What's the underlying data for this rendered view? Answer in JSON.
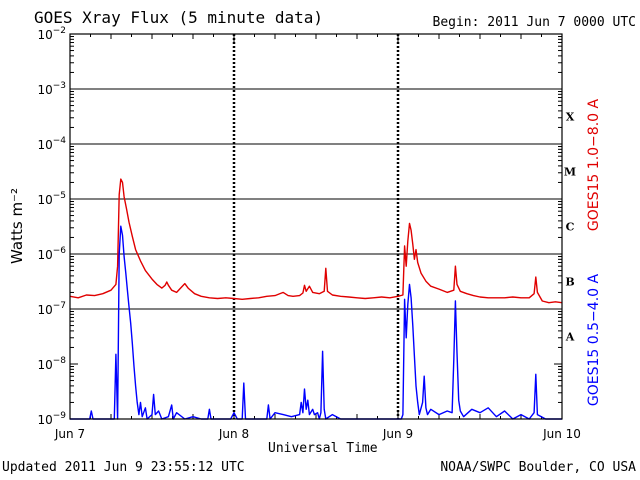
{
  "header": {
    "title": "GOES Xray Flux (5 minute data)",
    "begin": "Begin:  2011 Jun 7 0000 UTC"
  },
  "footer": {
    "updated": "Updated 2011 Jun  9 23:55:12 UTC",
    "source": "NOAA/SWPC Boulder, CO USA"
  },
  "colors": {
    "long_channel": "#e00000",
    "short_channel": "#0000ff",
    "axes": "#000000",
    "background": "#ffffff"
  },
  "chart_data": {
    "type": "line",
    "xlabel": "Universal Time",
    "ylabel": "Watts m⁻²",
    "yscale": "log",
    "ylim": [
      1e-09,
      0.01
    ],
    "xlim": [
      0,
      3
    ],
    "x_unit": "days since 2011 Jun 7 0000 UTC",
    "x_ticks": [
      {
        "value": 0,
        "label": "Jun 7"
      },
      {
        "value": 1,
        "label": "Jun 8"
      },
      {
        "value": 2,
        "label": "Jun 9"
      },
      {
        "value": 3,
        "label": "Jun 10"
      }
    ],
    "y_ticks": [
      {
        "value": 1e-09,
        "base": "10",
        "exp": "−9"
      },
      {
        "value": 1e-08,
        "base": "10",
        "exp": "−8"
      },
      {
        "value": 1e-07,
        "base": "10",
        "exp": "−7"
      },
      {
        "value": 1e-06,
        "base": "10",
        "exp": "−6"
      },
      {
        "value": 1e-05,
        "base": "10",
        "exp": "−5"
      },
      {
        "value": 0.0001,
        "base": "10",
        "exp": "−4"
      },
      {
        "value": 0.001,
        "base": "10",
        "exp": "−3"
      },
      {
        "value": 0.01,
        "base": "10",
        "exp": "−2"
      }
    ],
    "flare_classes": [
      {
        "label": "A",
        "value": 3.16e-08
      },
      {
        "label": "B",
        "value": 3.16e-07
      },
      {
        "label": "C",
        "value": 3.16e-06
      },
      {
        "label": "M",
        "value": 3.16e-05
      },
      {
        "label": "X",
        "value": 0.000316
      }
    ],
    "grid": {
      "horizontal_lines_at": [
        1e-07,
        1e-06,
        1e-05,
        0.0001,
        0.001
      ],
      "vertical_dashed_at": [
        1,
        2
      ]
    },
    "series": [
      {
        "name": "GOES15 1.0−8.0 A",
        "color": "#e00000",
        "points": [
          [
            0.0,
            1.7e-07
          ],
          [
            0.05,
            1.6e-07
          ],
          [
            0.1,
            1.8e-07
          ],
          [
            0.15,
            1.75e-07
          ],
          [
            0.2,
            1.9e-07
          ],
          [
            0.25,
            2.2e-07
          ],
          [
            0.28,
            2.8e-07
          ],
          [
            0.29,
            6e-07
          ],
          [
            0.3,
            1.2e-05
          ],
          [
            0.31,
            2.3e-05
          ],
          [
            0.32,
            2e-05
          ],
          [
            0.33,
            1.1e-05
          ],
          [
            0.345,
            6.5e-06
          ],
          [
            0.36,
            3.8e-06
          ],
          [
            0.38,
            2.1e-06
          ],
          [
            0.4,
            1.2e-06
          ],
          [
            0.43,
            7.5e-07
          ],
          [
            0.46,
            5e-07
          ],
          [
            0.5,
            3.5e-07
          ],
          [
            0.53,
            2.8e-07
          ],
          [
            0.56,
            2.4e-07
          ],
          [
            0.58,
            2.7e-07
          ],
          [
            0.59,
            3.1e-07
          ],
          [
            0.6,
            2.7e-07
          ],
          [
            0.62,
            2.2e-07
          ],
          [
            0.65,
            2e-07
          ],
          [
            0.68,
            2.5e-07
          ],
          [
            0.7,
            2.9e-07
          ],
          [
            0.72,
            2.4e-07
          ],
          [
            0.76,
            1.9e-07
          ],
          [
            0.8,
            1.7e-07
          ],
          [
            0.85,
            1.6e-07
          ],
          [
            0.9,
            1.55e-07
          ],
          [
            0.95,
            1.6e-07
          ],
          [
            1.0,
            1.55e-07
          ],
          [
            1.05,
            1.5e-07
          ],
          [
            1.1,
            1.55e-07
          ],
          [
            1.15,
            1.6e-07
          ],
          [
            1.2,
            1.7e-07
          ],
          [
            1.25,
            1.75e-07
          ],
          [
            1.3,
            2e-07
          ],
          [
            1.33,
            1.75e-07
          ],
          [
            1.36,
            1.7e-07
          ],
          [
            1.4,
            1.75e-07
          ],
          [
            1.42,
            1.95e-07
          ],
          [
            1.43,
            2.7e-07
          ],
          [
            1.44,
            2.1e-07
          ],
          [
            1.46,
            2.6e-07
          ],
          [
            1.48,
            2e-07
          ],
          [
            1.52,
            1.9e-07
          ],
          [
            1.55,
            2.1e-07
          ],
          [
            1.56,
            5.5e-07
          ],
          [
            1.57,
            2.1e-07
          ],
          [
            1.6,
            1.8e-07
          ],
          [
            1.65,
            1.7e-07
          ],
          [
            1.7,
            1.65e-07
          ],
          [
            1.75,
            1.6e-07
          ],
          [
            1.8,
            1.55e-07
          ],
          [
            1.85,
            1.6e-07
          ],
          [
            1.9,
            1.65e-07
          ],
          [
            1.95,
            1.6e-07
          ],
          [
            2.0,
            1.7e-07
          ],
          [
            2.03,
            1.8e-07
          ],
          [
            2.04,
            1.4e-06
          ],
          [
            2.05,
            6e-07
          ],
          [
            2.06,
            1.7e-06
          ],
          [
            2.07,
            3.6e-06
          ],
          [
            2.08,
            2.7e-06
          ],
          [
            2.09,
            1.5e-06
          ],
          [
            2.1,
            8e-07
          ],
          [
            2.11,
            1.2e-06
          ],
          [
            2.12,
            7e-07
          ],
          [
            2.14,
            4.5e-07
          ],
          [
            2.17,
            3.2e-07
          ],
          [
            2.2,
            2.6e-07
          ],
          [
            2.25,
            2.3e-07
          ],
          [
            2.3,
            2e-07
          ],
          [
            2.34,
            2.2e-07
          ],
          [
            2.35,
            6e-07
          ],
          [
            2.36,
            2.8e-07
          ],
          [
            2.38,
            2.1e-07
          ],
          [
            2.42,
            1.9e-07
          ],
          [
            2.46,
            1.75e-07
          ],
          [
            2.5,
            1.65e-07
          ],
          [
            2.55,
            1.6e-07
          ],
          [
            2.6,
            1.6e-07
          ],
          [
            2.65,
            1.6e-07
          ],
          [
            2.7,
            1.65e-07
          ],
          [
            2.75,
            1.6e-07
          ],
          [
            2.8,
            1.6e-07
          ],
          [
            2.83,
            1.9e-07
          ],
          [
            2.84,
            3.8e-07
          ],
          [
            2.85,
            2e-07
          ],
          [
            2.88,
            1.4e-07
          ],
          [
            2.92,
            1.3e-07
          ],
          [
            2.96,
            1.35e-07
          ],
          [
            3.0,
            1.3e-07
          ]
        ]
      },
      {
        "name": "GOES15 0.5−4.0 A",
        "color": "#0000ff",
        "points": [
          [
            0.0,
            1e-09
          ],
          [
            0.1,
            1e-09
          ],
          [
            0.12,
            1e-09
          ],
          [
            0.13,
            1.4e-09
          ],
          [
            0.14,
            1e-09
          ],
          [
            0.25,
            1e-09
          ],
          [
            0.27,
            1e-09
          ],
          [
            0.28,
            1.5e-08
          ],
          [
            0.29,
            1e-09
          ],
          [
            0.3,
            1e-06
          ],
          [
            0.31,
            3.2e-06
          ],
          [
            0.32,
            2.2e-06
          ],
          [
            0.33,
            9e-07
          ],
          [
            0.34,
            4.5e-07
          ],
          [
            0.35,
            2.2e-07
          ],
          [
            0.36,
            1.1e-07
          ],
          [
            0.37,
            5.5e-08
          ],
          [
            0.38,
            2.4e-08
          ],
          [
            0.39,
            9e-09
          ],
          [
            0.4,
            4e-09
          ],
          [
            0.41,
            2e-09
          ],
          [
            0.42,
            1.2e-09
          ],
          [
            0.43,
            2e-09
          ],
          [
            0.44,
            1.1e-09
          ],
          [
            0.46,
            1.6e-09
          ],
          [
            0.47,
            1e-09
          ],
          [
            0.5,
            1.2e-09
          ],
          [
            0.51,
            2.8e-09
          ],
          [
            0.52,
            1.2e-09
          ],
          [
            0.54,
            1.4e-09
          ],
          [
            0.56,
            1e-09
          ],
          [
            0.6,
            1.1e-09
          ],
          [
            0.62,
            1.8e-09
          ],
          [
            0.63,
            1e-09
          ],
          [
            0.65,
            1.3e-09
          ],
          [
            0.7,
            1e-09
          ],
          [
            0.75,
            1.1e-09
          ],
          [
            0.8,
            1e-09
          ],
          [
            0.84,
            1e-09
          ],
          [
            0.85,
            1.5e-09
          ],
          [
            0.86,
            1e-09
          ],
          [
            0.9,
            1e-09
          ],
          [
            0.98,
            1e-09
          ],
          [
            1.0,
            1.3e-09
          ],
          [
            1.02,
            1e-09
          ],
          [
            1.05,
            1e-09
          ],
          [
            1.06,
            4.5e-09
          ],
          [
            1.07,
            1e-09
          ],
          [
            1.1,
            1e-09
          ],
          [
            1.15,
            1e-09
          ],
          [
            1.2,
            1e-09
          ],
          [
            1.21,
            1.8e-09
          ],
          [
            1.22,
            1e-09
          ],
          [
            1.25,
            1.3e-09
          ],
          [
            1.3,
            1.2e-09
          ],
          [
            1.35,
            1.1e-09
          ],
          [
            1.4,
            1.2e-09
          ],
          [
            1.41,
            2e-09
          ],
          [
            1.42,
            1.3e-09
          ],
          [
            1.43,
            3.5e-09
          ],
          [
            1.44,
            1.5e-09
          ],
          [
            1.45,
            2.2e-09
          ],
          [
            1.46,
            1.2e-09
          ],
          [
            1.48,
            1.5e-09
          ],
          [
            1.49,
            1.2e-09
          ],
          [
            1.51,
            1.3e-09
          ],
          [
            1.52,
            1e-09
          ],
          [
            1.53,
            1.3e-09
          ],
          [
            1.54,
            1.7e-08
          ],
          [
            1.55,
            1.5e-09
          ],
          [
            1.56,
            1e-09
          ],
          [
            1.6,
            1.2e-09
          ],
          [
            1.65,
            1e-09
          ],
          [
            1.7,
            1e-09
          ],
          [
            1.75,
            1e-09
          ],
          [
            1.8,
            1e-09
          ],
          [
            1.85,
            1e-09
          ],
          [
            1.9,
            1e-09
          ],
          [
            1.95,
            1e-09
          ],
          [
            2.0,
            1e-09
          ],
          [
            2.02,
            1e-09
          ],
          [
            2.03,
            1.2e-09
          ],
          [
            2.04,
            1.5e-07
          ],
          [
            2.05,
            3e-08
          ],
          [
            2.06,
            1.2e-07
          ],
          [
            2.07,
            2.8e-07
          ],
          [
            2.08,
            1.6e-07
          ],
          [
            2.09,
            5e-08
          ],
          [
            2.1,
            1.4e-08
          ],
          [
            2.11,
            4e-09
          ],
          [
            2.12,
            2e-09
          ],
          [
            2.13,
            1.2e-09
          ],
          [
            2.15,
            2e-09
          ],
          [
            2.16,
            6e-09
          ],
          [
            2.17,
            1.6e-09
          ],
          [
            2.18,
            1.2e-09
          ],
          [
            2.2,
            1.5e-09
          ],
          [
            2.25,
            1.2e-09
          ],
          [
            2.3,
            1.4e-09
          ],
          [
            2.33,
            1.3e-09
          ],
          [
            2.34,
            1.2e-08
          ],
          [
            2.35,
            1.4e-07
          ],
          [
            2.36,
            1.6e-08
          ],
          [
            2.37,
            2.2e-09
          ],
          [
            2.38,
            1.4e-09
          ],
          [
            2.4,
            1.1e-09
          ],
          [
            2.45,
            1.5e-09
          ],
          [
            2.5,
            1.3e-09
          ],
          [
            2.55,
            1.6e-09
          ],
          [
            2.6,
            1.1e-09
          ],
          [
            2.65,
            1.4e-09
          ],
          [
            2.7,
            1e-09
          ],
          [
            2.75,
            1.2e-09
          ],
          [
            2.8,
            1e-09
          ],
          [
            2.83,
            1.3e-09
          ],
          [
            2.84,
            6.5e-09
          ],
          [
            2.85,
            1.2e-09
          ],
          [
            2.9,
            1e-09
          ],
          [
            2.95,
            1e-09
          ],
          [
            3.0,
            1e-09
          ]
        ]
      }
    ]
  }
}
